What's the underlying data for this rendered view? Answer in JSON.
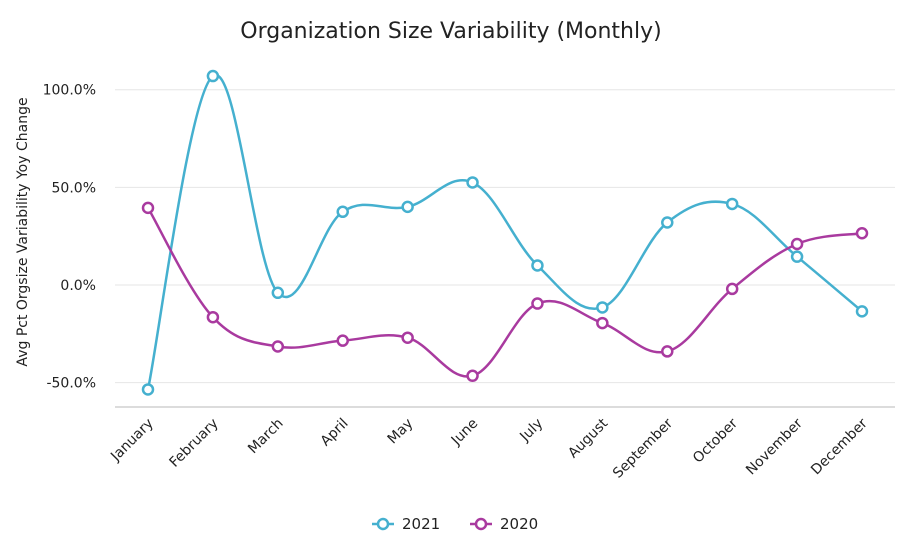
{
  "chart_data": {
    "type": "line",
    "title": "Organization Size Variability (Monthly)",
    "xlabel": "",
    "ylabel": "Avg Pct Orgsize Variability Yoy Change",
    "categories": [
      "January",
      "February",
      "March",
      "April",
      "May",
      "June",
      "July",
      "August",
      "September",
      "October",
      "November",
      "December"
    ],
    "ylim": [
      -62,
      112
    ],
    "y_ticks": [
      100,
      50,
      0,
      -50
    ],
    "y_tick_labels": [
      "100.0%",
      "50.0%",
      "0.0%",
      "-50.0%"
    ],
    "grid": true,
    "legend_position": "bottom-center",
    "series": [
      {
        "name": "2021",
        "color": "#45b0cf",
        "values": [
          -53.5,
          107,
          -4,
          37.5,
          40,
          52.5,
          10,
          -11.5,
          32,
          41.5,
          14.5,
          -13.5
        ]
      },
      {
        "name": "2020",
        "color": "#a93a9f",
        "values": [
          39.5,
          -16.5,
          -31.5,
          -28.5,
          -27,
          -46.5,
          -9.5,
          -19.5,
          -34,
          -2,
          21,
          26.5
        ]
      }
    ]
  }
}
